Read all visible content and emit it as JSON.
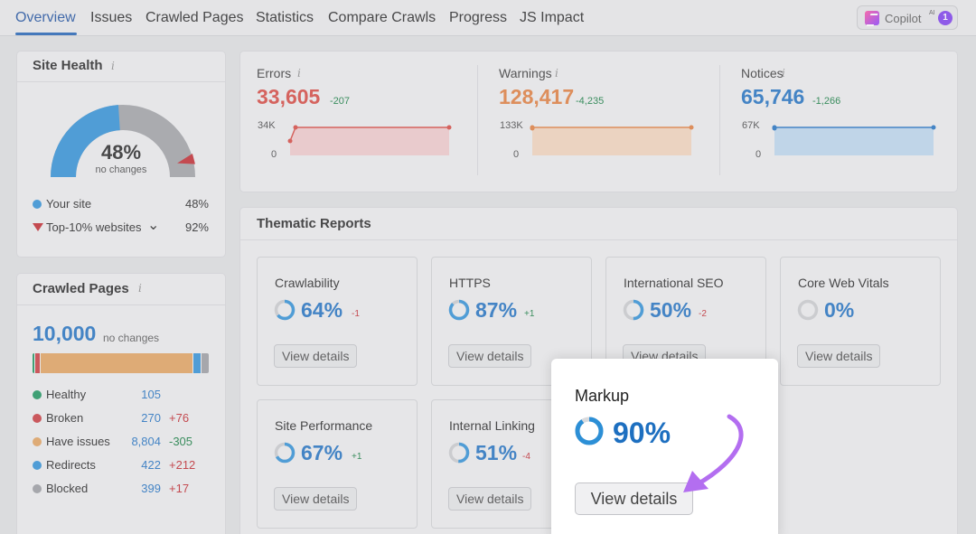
{
  "nav": {
    "tabs": [
      "Overview",
      "Issues",
      "Crawled Pages",
      "Statistics",
      "Compare Crawls",
      "Progress",
      "JS Impact"
    ],
    "copilot_label": "Copilot",
    "copilot_sup": "AI",
    "copilot_badge": "1"
  },
  "site_health": {
    "title": "Site Health",
    "info": "i",
    "percent": "48%",
    "percent_value": 48,
    "top10_value": 92,
    "sub": "no changes",
    "legend": [
      {
        "label": "Your site",
        "value": "48%",
        "color": "#2c8fd6"
      },
      {
        "label": "Top-10% websites",
        "value": "92%",
        "color": "#c0252b"
      }
    ],
    "chevron": "⌄"
  },
  "crawled_pages": {
    "title": "Crawled Pages",
    "info": "i",
    "total": "10,000",
    "sub": "no changes",
    "rows": [
      {
        "label": "Healthy",
        "value": "105",
        "delta": "",
        "color": "#16935a",
        "delta_color": "#0f7a3c"
      },
      {
        "label": "Broken",
        "value": "270",
        "delta": "+76",
        "color": "#c8373c",
        "delta_color": "#c0252b"
      },
      {
        "label": "Have issues",
        "value": "8,804",
        "delta": "-305",
        "color": "#e2a05c",
        "delta_color": "#0f7a3c"
      },
      {
        "label": "Redirects",
        "value": "422",
        "delta": "+212",
        "color": "#2c8fd6",
        "delta_color": "#c0252b"
      },
      {
        "label": "Blocked",
        "value": "399",
        "delta": "+17",
        "color": "#9a9ca0",
        "delta_color": "#c0252b"
      }
    ],
    "bar": [
      {
        "color": "#16935a",
        "share": 1.05
      },
      {
        "color": "#c8373c",
        "share": 2.7
      },
      {
        "color": "#e2a05c",
        "share": 88.04
      },
      {
        "color": "#2c8fd6",
        "share": 4.22
      },
      {
        "color": "#9a9ca0",
        "share": 3.99
      }
    ]
  },
  "stats": [
    {
      "label": "Errors",
      "value": "33,605",
      "delta": "-207",
      "ymax": "34K",
      "ymin": "0",
      "color": "#d6453d",
      "fill": "#f0c9cb"
    },
    {
      "label": "Warnings",
      "value": "128,417",
      "delta": "-4,235",
      "ymax": "133K",
      "ymin": "0",
      "color": "#e07b3a",
      "fill": "#f3d4bb"
    },
    {
      "label": "Notices",
      "value": "65,746",
      "delta": "-1,266",
      "ymax": "67K",
      "ymin": "0",
      "color": "#1d6fc0",
      "fill": "#bcd6ee"
    }
  ],
  "thematic": {
    "title": "Thematic Reports",
    "button_label": "View details",
    "cards": [
      {
        "name": "Crawlability",
        "pct": "64%",
        "pct_value": 64,
        "delta": "-1",
        "delta_color": "#c0252b"
      },
      {
        "name": "HTTPS",
        "pct": "87%",
        "pct_value": 87,
        "delta": "+1",
        "delta_color": "#0f7a3c"
      },
      {
        "name": "International SEO",
        "pct": "50%",
        "pct_value": 50,
        "delta": "-2",
        "delta_color": "#c0252b"
      },
      {
        "name": "Core Web Vitals",
        "pct": "0%",
        "pct_value": 0,
        "delta": "",
        "delta_color": "#0f7a3c"
      },
      {
        "name": "Site Performance",
        "pct": "67%",
        "pct_value": 67,
        "delta": "+1",
        "delta_color": "#0f7a3c"
      },
      {
        "name": "Internal Linking",
        "pct": "51%",
        "pct_value": 51,
        "delta": "-4",
        "delta_color": "#c0252b"
      }
    ],
    "highlight": {
      "name": "Markup",
      "pct": "90%",
      "pct_value": 90,
      "button_label": "View details"
    }
  },
  "colors": {
    "accent": "#1d6fc0",
    "arrow": "#b36ef0"
  }
}
